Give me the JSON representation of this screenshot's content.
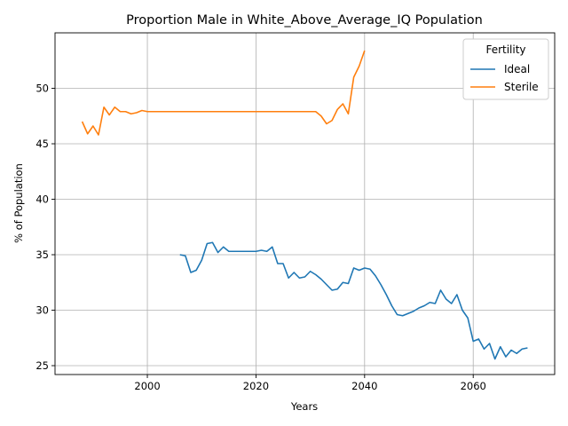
{
  "chart_data": {
    "type": "line",
    "title": "Proportion Male in White_Above_Average_IQ Population",
    "xlabel": "Years",
    "ylabel": "% of Population",
    "xlim": [
      1983,
      2075
    ],
    "ylim": [
      24.2,
      55.0
    ],
    "xticks": [
      2000,
      2020,
      2040,
      2060
    ],
    "yticks": [
      25,
      30,
      35,
      40,
      45,
      50
    ],
    "grid": true,
    "legend": {
      "title": "Fertility",
      "placement": "top-right"
    },
    "series": [
      {
        "name": "Ideal",
        "color": "#1f77b4",
        "points": [
          [
            2006,
            35.0
          ],
          [
            2007,
            34.9
          ],
          [
            2008,
            33.4
          ],
          [
            2009,
            33.6
          ],
          [
            2010,
            34.5
          ],
          [
            2011,
            36.0
          ],
          [
            2012,
            36.1
          ],
          [
            2013,
            35.2
          ],
          [
            2014,
            35.7
          ],
          [
            2015,
            35.3
          ],
          [
            2016,
            35.3
          ],
          [
            2017,
            35.3
          ],
          [
            2018,
            35.3
          ],
          [
            2019,
            35.3
          ],
          [
            2020,
            35.3
          ],
          [
            2021,
            35.4
          ],
          [
            2022,
            35.3
          ],
          [
            2023,
            35.7
          ],
          [
            2024,
            34.2
          ],
          [
            2025,
            34.2
          ],
          [
            2026,
            32.9
          ],
          [
            2027,
            33.4
          ],
          [
            2028,
            32.9
          ],
          [
            2029,
            33.0
          ],
          [
            2030,
            33.5
          ],
          [
            2031,
            33.2
          ],
          [
            2032,
            32.8
          ],
          [
            2033,
            32.3
          ],
          [
            2034,
            31.8
          ],
          [
            2035,
            31.9
          ],
          [
            2036,
            32.5
          ],
          [
            2037,
            32.4
          ],
          [
            2038,
            33.8
          ],
          [
            2039,
            33.6
          ],
          [
            2040,
            33.8
          ],
          [
            2041,
            33.7
          ],
          [
            2042,
            33.1
          ],
          [
            2043,
            32.3
          ],
          [
            2044,
            31.4
          ],
          [
            2045,
            30.4
          ],
          [
            2046,
            29.6
          ],
          [
            2047,
            29.5
          ],
          [
            2048,
            29.7
          ],
          [
            2049,
            29.9
          ],
          [
            2050,
            30.2
          ],
          [
            2051,
            30.4
          ],
          [
            2052,
            30.7
          ],
          [
            2053,
            30.6
          ],
          [
            2054,
            31.8
          ],
          [
            2055,
            31.0
          ],
          [
            2056,
            30.6
          ],
          [
            2057,
            31.4
          ],
          [
            2058,
            30.0
          ],
          [
            2059,
            29.3
          ],
          [
            2060,
            27.2
          ],
          [
            2061,
            27.4
          ],
          [
            2062,
            26.5
          ],
          [
            2063,
            27.0
          ],
          [
            2064,
            25.6
          ],
          [
            2065,
            26.7
          ],
          [
            2066,
            25.8
          ],
          [
            2067,
            26.4
          ],
          [
            2068,
            26.1
          ],
          [
            2069,
            26.5
          ],
          [
            2070,
            26.6
          ]
        ]
      },
      {
        "name": "Sterile",
        "color": "#ff7f0e",
        "points": [
          [
            1988,
            47.0
          ],
          [
            1989,
            45.9
          ],
          [
            1990,
            46.6
          ],
          [
            1991,
            45.8
          ],
          [
            1992,
            48.3
          ],
          [
            1993,
            47.6
          ],
          [
            1994,
            48.3
          ],
          [
            1995,
            47.9
          ],
          [
            1996,
            47.9
          ],
          [
            1997,
            47.7
          ],
          [
            1998,
            47.8
          ],
          [
            1999,
            48.0
          ],
          [
            2000,
            47.9
          ],
          [
            2005,
            47.9
          ],
          [
            2010,
            47.9
          ],
          [
            2015,
            47.9
          ],
          [
            2020,
            47.9
          ],
          [
            2025,
            47.9
          ],
          [
            2030,
            47.9
          ],
          [
            2031,
            47.9
          ],
          [
            2032,
            47.5
          ],
          [
            2033,
            46.8
          ],
          [
            2034,
            47.1
          ],
          [
            2035,
            48.1
          ],
          [
            2036,
            48.6
          ],
          [
            2037,
            47.7
          ],
          [
            2038,
            51.0
          ],
          [
            2039,
            52.0
          ],
          [
            2040,
            53.4
          ]
        ]
      }
    ]
  }
}
